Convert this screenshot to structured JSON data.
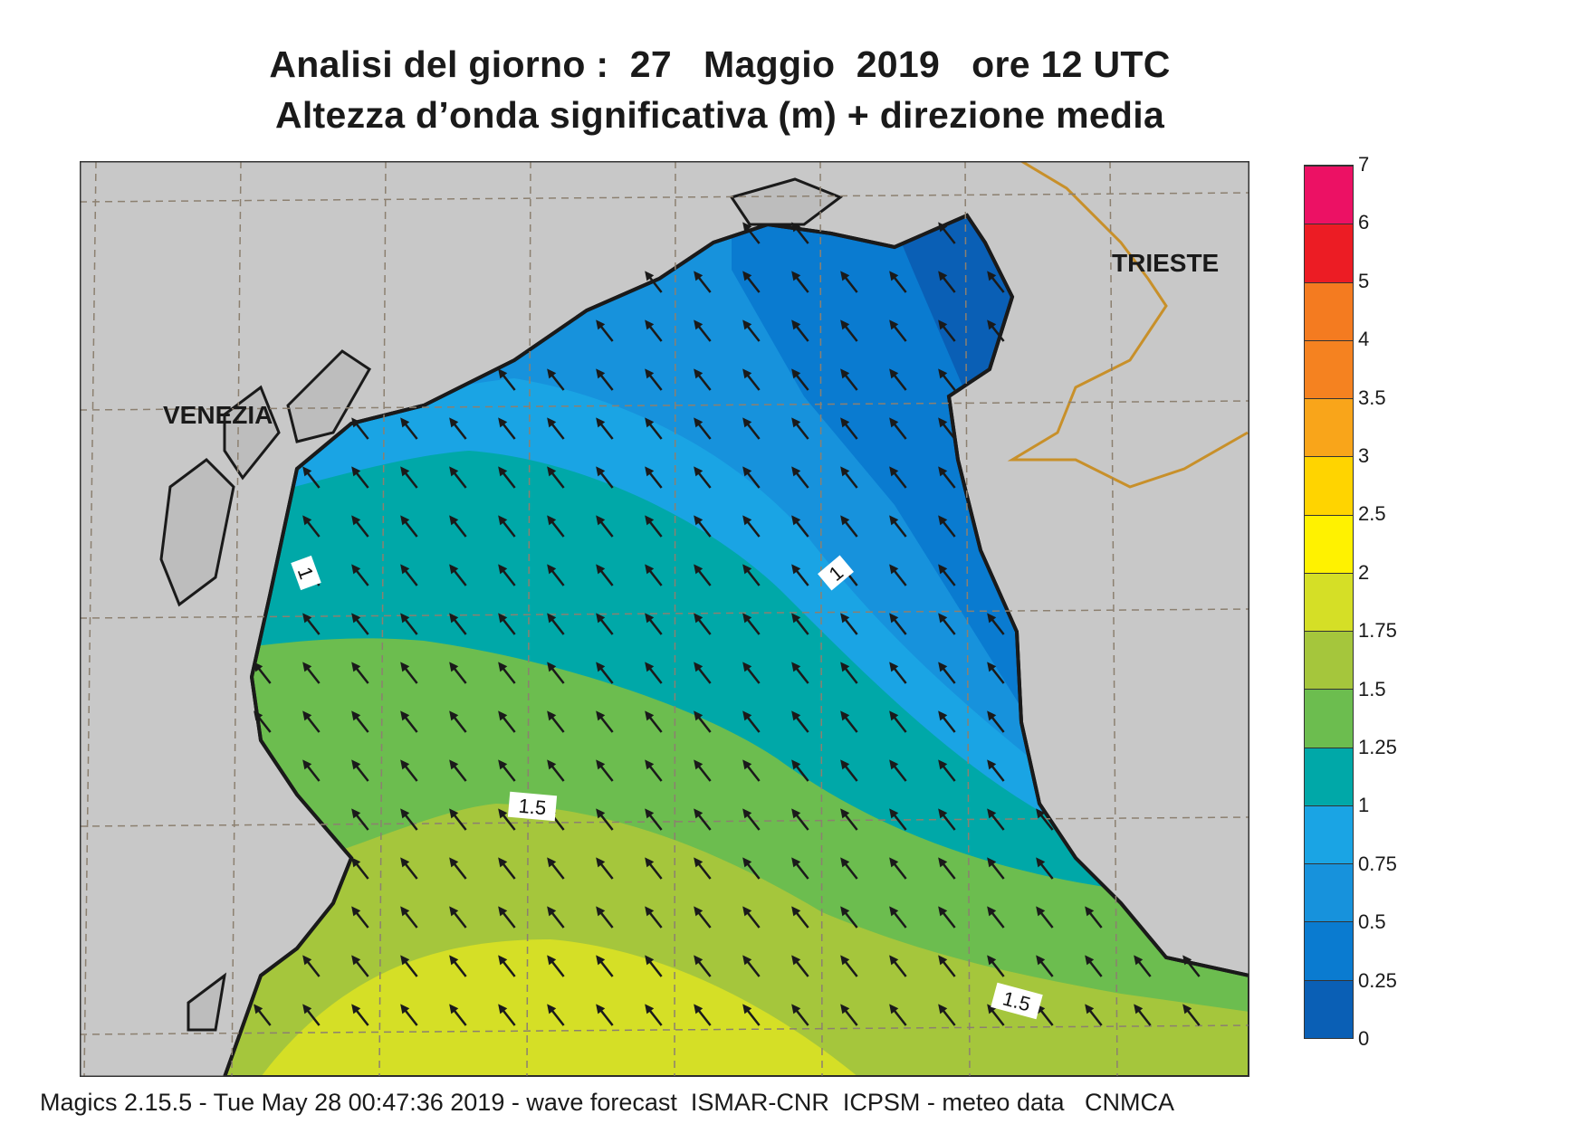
{
  "title": {
    "line1": "Analisi del giorno :  27   Maggio  2019   ore 12 UTC",
    "line2": "Altezza d’onda significativa (m) + direzione media"
  },
  "map": {
    "cities": [
      "VENEZIA",
      "TRIESTE"
    ],
    "contour_labels": [
      "1",
      "1",
      "1.5",
      "1.5"
    ],
    "arrow_direction": "north-west",
    "colors": {
      "land": "#c8c8c8",
      "coast": "#1a1a1a",
      "border": "#c8902a",
      "grid": "#8c8070"
    }
  },
  "legend": {
    "ticks": [
      "0",
      "0.25",
      "0.5",
      "0.75",
      "1",
      "1.25",
      "1.5",
      "1.75",
      "2",
      "2.5",
      "3",
      "3.5",
      "4",
      "5",
      "6",
      "7"
    ],
    "colors": [
      "#0a5fb5",
      "#0a7bd0",
      "#1792dc",
      "#1aa4e4",
      "#00a8a8",
      "#6cbd4f",
      "#a5c63c",
      "#d5df26",
      "#fff200",
      "#ffd400",
      "#f9a51a",
      "#f58220",
      "#f47b20",
      "#ec1c24",
      "#ec1164"
    ]
  },
  "footer": "Magics 2.15.5 - Tue May 28 00:47:36 2019 - wave forecast  ISMAR-CNR  ICPSM - meteo data   CNMCA"
}
